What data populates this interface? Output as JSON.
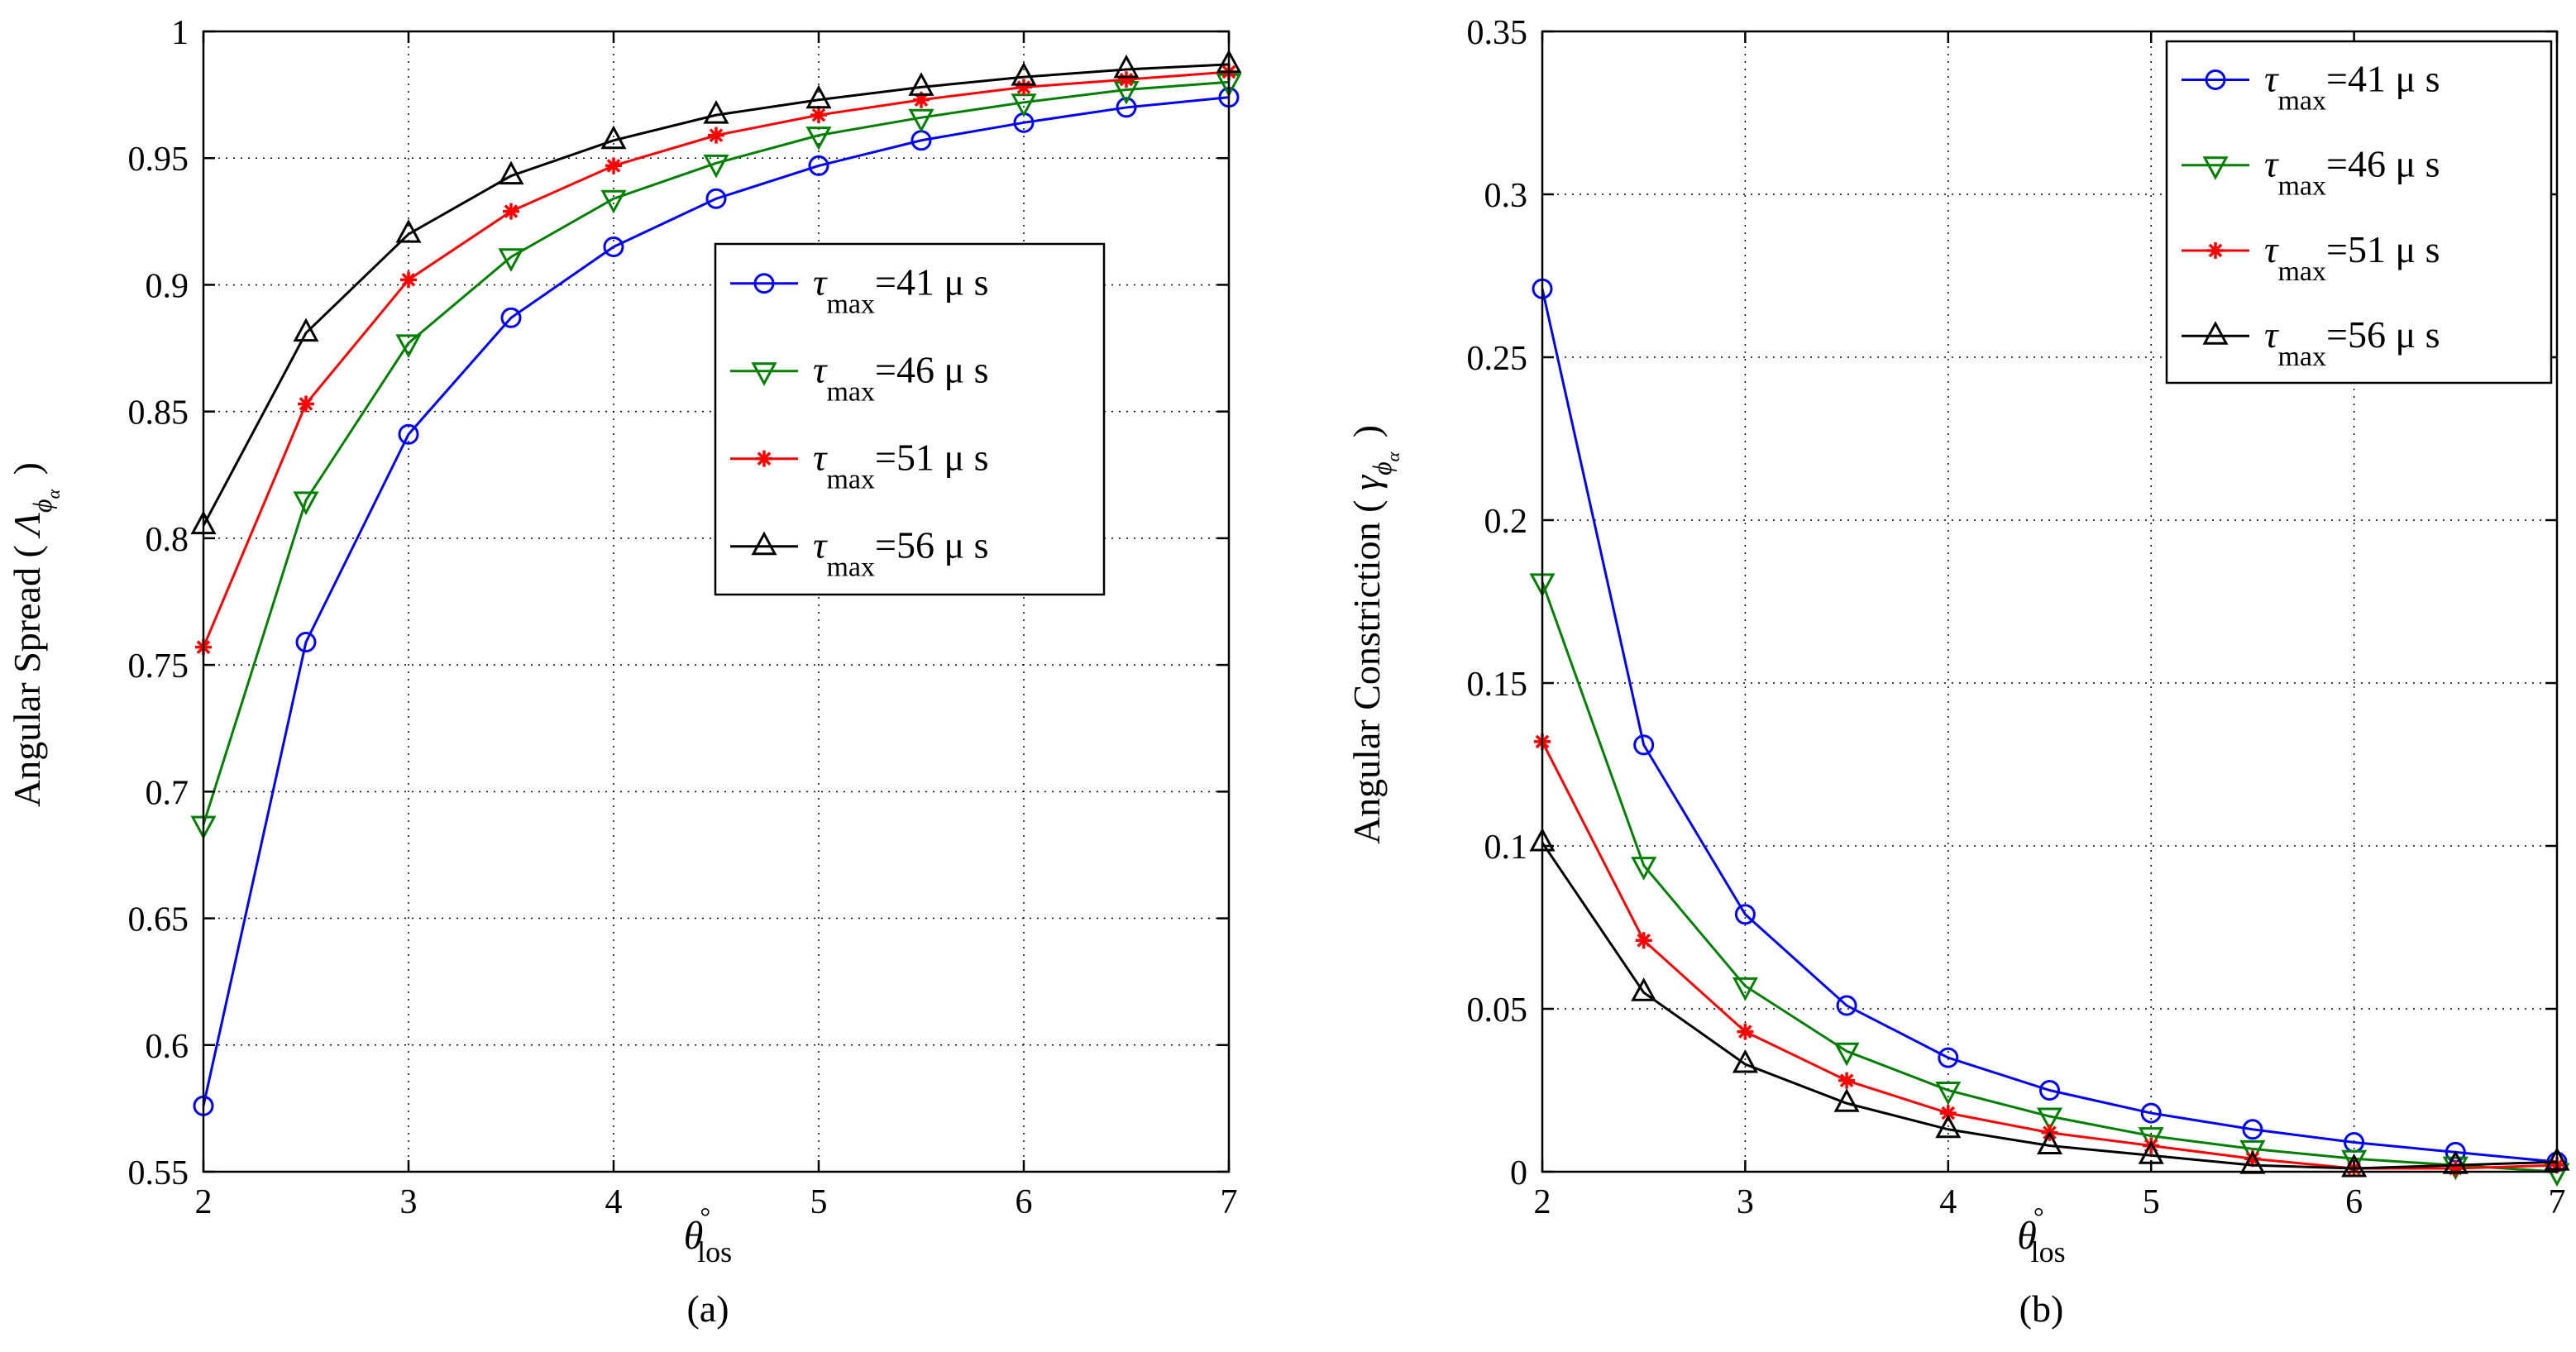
{
  "chart_data": [
    {
      "type": "line",
      "caption": "(a)",
      "xlabel_symbol": "θ",
      "xlabel_superscript": "°",
      "xlabel_subscript": "los",
      "ylabel": "Angular Spread (",
      "ylabel_symbol": "Λ",
      "ylabel_sub": "ϕ",
      "ylabel_subsub": "α",
      "ylabel_close": ")",
      "xlim": [
        2,
        7
      ],
      "ylim": [
        0.55,
        1.0
      ],
      "xticks": [
        2,
        3,
        4,
        5,
        6,
        7
      ],
      "xtick_labels": [
        "2",
        "3",
        "4",
        "5",
        "6",
        "7"
      ],
      "yticks": [
        0.55,
        0.6,
        0.65,
        0.7,
        0.75,
        0.8,
        0.85,
        0.9,
        0.95,
        1.0
      ],
      "ytick_labels": [
        "0.55",
        "0.6",
        "0.65",
        "0.7",
        "0.75",
        "0.8",
        "0.85",
        "0.9",
        "0.95",
        "1"
      ],
      "grid": true,
      "legend_position": "center-right",
      "x": [
        2,
        2.5,
        3,
        3.5,
        4,
        4.5,
        5,
        5.5,
        6,
        6.5,
        7
      ],
      "series": [
        {
          "name": "τ_max=41 μs",
          "legend_sym": "τ",
          "legend_sub": "max",
          "legend_rest": "=41  μ s",
          "color": "#0000ff",
          "marker": "circle",
          "values": [
            0.576,
            0.759,
            0.841,
            0.887,
            0.915,
            0.934,
            0.947,
            0.957,
            0.964,
            0.97,
            0.974
          ]
        },
        {
          "name": "τ_max=46 μs",
          "legend_sym": "τ",
          "legend_sub": "max",
          "legend_rest": "=46  μ s",
          "color": "#008000",
          "marker": "triangle-down",
          "values": [
            0.687,
            0.815,
            0.877,
            0.911,
            0.934,
            0.948,
            0.959,
            0.966,
            0.972,
            0.977,
            0.98
          ]
        },
        {
          "name": "τ_max=51 μs",
          "legend_sym": "τ",
          "legend_sub": "max",
          "legend_rest": "=51  μ s",
          "color": "#ff0000",
          "marker": "asterisk",
          "values": [
            0.757,
            0.853,
            0.902,
            0.929,
            0.947,
            0.959,
            0.967,
            0.973,
            0.978,
            0.981,
            0.984
          ]
        },
        {
          "name": "τ_max=56 μs",
          "legend_sym": "τ",
          "legend_sub": "max",
          "legend_rest": "=56  μ s",
          "color": "#000000",
          "marker": "triangle-up",
          "values": [
            0.805,
            0.881,
            0.92,
            0.943,
            0.957,
            0.967,
            0.973,
            0.978,
            0.982,
            0.985,
            0.987
          ]
        }
      ]
    },
    {
      "type": "line",
      "caption": "(b)",
      "xlabel_symbol": "θ",
      "xlabel_superscript": "°",
      "xlabel_subscript": "los",
      "ylabel": "Angular Constriction (",
      "ylabel_symbol": "γ",
      "ylabel_sub": "ϕ",
      "ylabel_subsub": "α",
      "ylabel_close": ")",
      "xlim": [
        2,
        7
      ],
      "ylim": [
        0,
        0.35
      ],
      "xticks": [
        2,
        3,
        4,
        5,
        6,
        7
      ],
      "xtick_labels": [
        "2",
        "3",
        "4",
        "5",
        "6",
        "7"
      ],
      "yticks": [
        0,
        0.05,
        0.1,
        0.15,
        0.2,
        0.25,
        0.3,
        0.35
      ],
      "ytick_labels": [
        "0",
        "0.05",
        "0.1",
        "0.15",
        "0.2",
        "0.25",
        "0.3",
        "0.35"
      ],
      "grid": true,
      "legend_position": "top-right",
      "x": [
        2,
        2.5,
        3,
        3.5,
        4,
        4.5,
        5,
        5.5,
        6,
        6.5,
        7
      ],
      "series": [
        {
          "name": "τ_max=41 μs",
          "legend_sym": "τ",
          "legend_sub": "max",
          "legend_rest": "=41  μ s",
          "color": "#0000ff",
          "marker": "circle",
          "values": [
            0.271,
            0.131,
            0.079,
            0.051,
            0.035,
            0.025,
            0.018,
            0.013,
            0.009,
            0.006,
            0.003
          ]
        },
        {
          "name": "τ_max=46 μs",
          "legend_sym": "τ",
          "legend_sub": "max",
          "legend_rest": "=46  μ s",
          "color": "#008000",
          "marker": "triangle-down",
          "values": [
            0.181,
            0.094,
            0.057,
            0.037,
            0.025,
            0.017,
            0.011,
            0.007,
            0.004,
            0.002,
            0.0
          ]
        },
        {
          "name": "τ_max=51 μs",
          "legend_sym": "τ",
          "legend_sub": "max",
          "legend_rest": "=51  μ s",
          "color": "#ff0000",
          "marker": "asterisk",
          "values": [
            0.132,
            0.071,
            0.043,
            0.028,
            0.018,
            0.012,
            0.008,
            0.004,
            0.001,
            0.001,
            0.002
          ]
        },
        {
          "name": "τ_max=56 μs",
          "legend_sym": "τ",
          "legend_sub": "max",
          "legend_rest": "=56  μ s",
          "color": "#000000",
          "marker": "triangle-up",
          "values": [
            0.101,
            0.055,
            0.033,
            0.021,
            0.013,
            0.008,
            0.005,
            0.002,
            0.001,
            0.002,
            0.003
          ]
        }
      ]
    }
  ]
}
